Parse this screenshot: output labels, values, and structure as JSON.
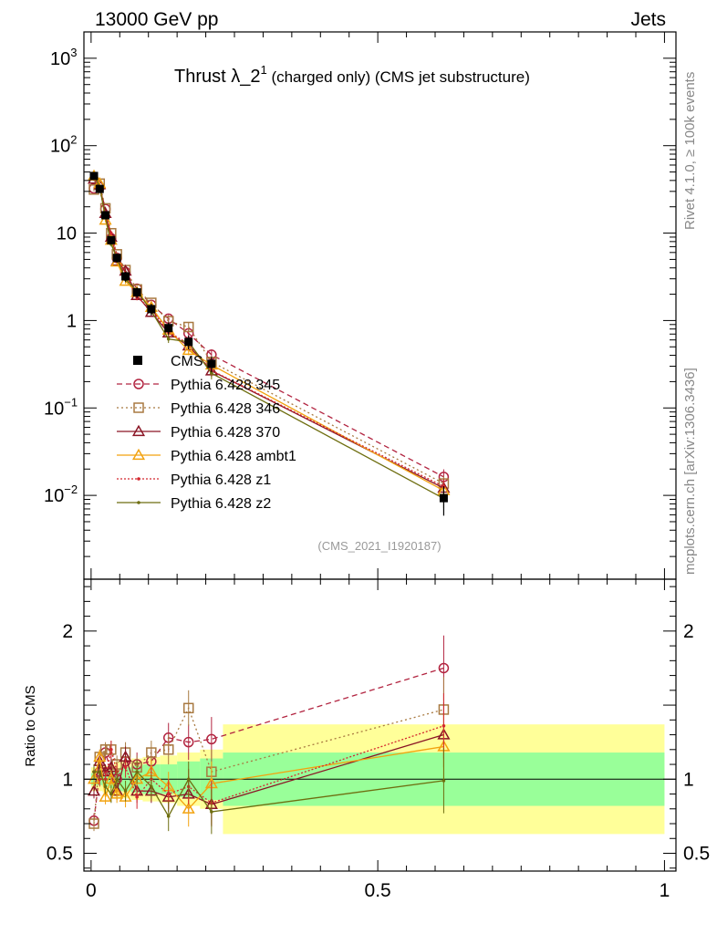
{
  "header": {
    "left": "13000 GeV pp",
    "right": "Jets"
  },
  "title": {
    "main": "Thrust λ_2",
    "sup": "1",
    "rest": " (charged only) (CMS jet substructure)"
  },
  "side_labels": {
    "rivet": "Rivet 4.1.0, ≥ 100k events",
    "mcplots": "mcplots.cern.ch [arXiv:1306.3436]"
  },
  "analysis_tag": "(CMS_2021_I1920187)",
  "chart_data": {
    "type": "line",
    "xlim": [
      -0.0125,
      1.02
    ],
    "main_panel": {
      "yscale": "log",
      "ylim": [
        0.0011,
        2000
      ],
      "ytick_labels": [
        {
          "value": 1000,
          "base": "10",
          "exp": "3"
        },
        {
          "value": 100,
          "base": "10",
          "exp": "2"
        },
        {
          "value": 10,
          "base": "10",
          "exp": ""
        },
        {
          "value": 1,
          "base": "1",
          "exp": ""
        },
        {
          "value": 0.1,
          "base": "10",
          "exp": "−1"
        },
        {
          "value": 0.01,
          "base": "10",
          "exp": "−2"
        }
      ]
    },
    "ratio_panel": {
      "ylabel": "Ratio to CMS",
      "ylim": [
        0.38,
        2.35
      ],
      "ytick_labels": [
        {
          "value": 2,
          "label": "2"
        },
        {
          "value": 1,
          "label": "1"
        },
        {
          "value": 0.5,
          "label": "0.5"
        }
      ]
    },
    "x_tick_labels": [
      {
        "value": 0,
        "label": "0"
      },
      {
        "value": 0.5,
        "label": "0.5"
      },
      {
        "value": 1,
        "label": "1"
      }
    ],
    "bins": [
      0.0,
      0.01,
      0.02,
      0.03,
      0.04,
      0.05,
      0.07,
      0.09,
      0.12,
      0.15,
      0.19,
      0.23,
      1.0
    ],
    "x": [
      0.005,
      0.015,
      0.025,
      0.035,
      0.045,
      0.06,
      0.08,
      0.105,
      0.135,
      0.17,
      0.21,
      0.615
    ],
    "data": {
      "name": "CMS",
      "values": [
        45,
        32,
        16,
        8.3,
        5.2,
        3.2,
        2.1,
        1.35,
        0.82,
        0.57,
        0.32,
        0.0093
      ],
      "stat_band": [
        0.04,
        0.04,
        0.05,
        0.06,
        0.07,
        0.08,
        0.09,
        0.1,
        0.1,
        0.12,
        0.14,
        0.18
      ],
      "total_band": [
        0.08,
        0.08,
        0.09,
        0.1,
        0.12,
        0.13,
        0.14,
        0.15,
        0.16,
        0.18,
        0.2,
        0.37
      ]
    },
    "series": [
      {
        "name": "Pythia 6.428 345",
        "color": "#b22440",
        "marker": "circle",
        "dash": "6,4",
        "ratio": [
          0.72,
          1.05,
          1.18,
          1.05,
          1.0,
          1.12,
          1.1,
          1.12,
          1.28,
          1.25,
          1.27,
          1.75
        ],
        "ratio_err": [
          0.05,
          0.05,
          0.05,
          0.06,
          0.06,
          0.07,
          0.08,
          0.08,
          0.1,
          0.12,
          0.15,
          0.22
        ]
      },
      {
        "name": "Pythia 6.428 346",
        "color": "#a87940",
        "marker": "square",
        "dash": "2,3",
        "ratio": [
          0.7,
          1.15,
          1.2,
          1.2,
          1.1,
          1.18,
          1.08,
          1.18,
          1.2,
          1.48,
          1.05,
          1.47
        ],
        "ratio_err": [
          0.05,
          0.05,
          0.05,
          0.06,
          0.06,
          0.07,
          0.08,
          0.08,
          0.1,
          0.12,
          0.15,
          0.22
        ]
      },
      {
        "name": "Pythia 6.428 370",
        "color": "#8a1525",
        "marker": "triangle",
        "dash": "",
        "ratio": [
          0.92,
          1.12,
          1.05,
          1.08,
          0.92,
          1.15,
          0.92,
          0.92,
          0.88,
          0.9,
          0.83,
          1.3
        ],
        "ratio_err": [
          0.05,
          0.05,
          0.05,
          0.06,
          0.06,
          0.07,
          0.08,
          0.08,
          0.1,
          0.12,
          0.15,
          0.22
        ]
      },
      {
        "name": "Pythia 6.428 ambt1",
        "color": "#f2a20f",
        "marker": "triangle",
        "dash": "",
        "ratio": [
          1.0,
          1.15,
          0.88,
          1.0,
          0.9,
          0.88,
          1.0,
          1.05,
          0.95,
          0.8,
          0.97,
          1.22
        ],
        "ratio_err": [
          0.05,
          0.05,
          0.05,
          0.06,
          0.06,
          0.07,
          0.08,
          0.08,
          0.1,
          0.12,
          0.15,
          0.22
        ]
      },
      {
        "name": "Pythia 6.428 z1",
        "color": "#d4282f",
        "marker": "dot",
        "dash": "2,2",
        "ratio": [
          1.05,
          1.0,
          1.0,
          1.2,
          1.05,
          1.08,
          0.88,
          1.0,
          0.9,
          0.95,
          0.84,
          1.36
        ],
        "ratio_err": [
          0.05,
          0.05,
          0.05,
          0.06,
          0.06,
          0.07,
          0.08,
          0.08,
          0.1,
          0.12,
          0.15,
          0.22
        ]
      },
      {
        "name": "Pythia 6.428 z2",
        "color": "#6e6e10",
        "marker": "dot",
        "dash": "",
        "ratio": [
          1.05,
          1.05,
          0.95,
          0.9,
          1.0,
          0.92,
          1.05,
          0.95,
          0.75,
          1.0,
          0.78,
          0.99
        ],
        "ratio_err": [
          0.05,
          0.05,
          0.05,
          0.06,
          0.06,
          0.07,
          0.08,
          0.08,
          0.1,
          0.12,
          0.15,
          0.22
        ]
      }
    ]
  }
}
